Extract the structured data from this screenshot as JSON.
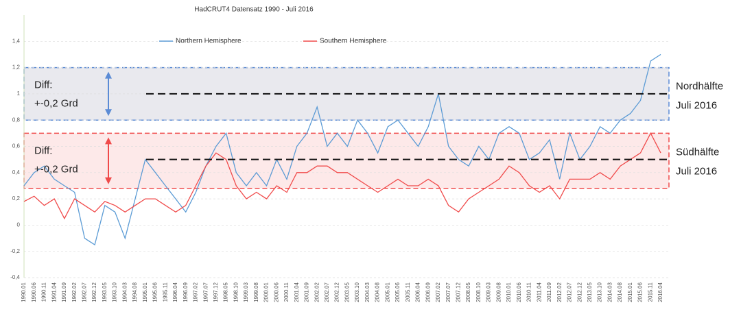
{
  "chart_data": {
    "type": "line",
    "title": "HadCRUT4 Datensatz  1990 - Juli 2016",
    "categories": [
      "1990.01",
      "1990.06",
      "1990.11",
      "1991.04",
      "1991.09",
      "1992.02",
      "1992.07",
      "1992.12",
      "1993.05",
      "1993.10",
      "1994.03",
      "1994.08",
      "1995.01",
      "1995.06",
      "1995.11",
      "1996.04",
      "1996.09",
      "1997.02",
      "1997.07",
      "1997.12",
      "1998.05",
      "1998.10",
      "1999.03",
      "1999.08",
      "2000.01",
      "2000.06",
      "2000.11",
      "2001.04",
      "2001.09",
      "2002.02",
      "2002.07",
      "2002.12",
      "2003.05",
      "2003.10",
      "2004.03",
      "2004.08",
      "2005.01",
      "2005.06",
      "2005.11",
      "2006.04",
      "2006.09",
      "2007.02",
      "2007.07",
      "2007.12",
      "2008.05",
      "2008.10",
      "2009.03",
      "2009.08",
      "2010.01",
      "2010.06",
      "2010.11",
      "2011.04",
      "2011.09",
      "2012.02",
      "2012.07",
      "2012.12",
      "2013.05",
      "2013.10",
      "2014.03",
      "2014.08",
      "2015.01",
      "2015.06",
      "2015.11",
      "2016.04"
    ],
    "series": [
      {
        "name": "Northern Hemisphere",
        "color": "#5b9bd5",
        "values": [
          0.3,
          0.4,
          0.45,
          0.35,
          0.3,
          0.25,
          -0.1,
          -0.15,
          0.15,
          0.1,
          -0.1,
          0.2,
          0.5,
          0.4,
          0.3,
          0.2,
          0.1,
          0.25,
          0.45,
          0.6,
          0.7,
          0.4,
          0.3,
          0.4,
          0.3,
          0.5,
          0.35,
          0.6,
          0.7,
          0.9,
          0.6,
          0.7,
          0.6,
          0.8,
          0.7,
          0.55,
          0.75,
          0.8,
          0.7,
          0.6,
          0.75,
          1.0,
          0.6,
          0.5,
          0.45,
          0.6,
          0.5,
          0.7,
          0.75,
          0.7,
          0.5,
          0.55,
          0.65,
          0.35,
          0.7,
          0.5,
          0.6,
          0.75,
          0.7,
          0.8,
          0.85,
          0.95,
          1.25,
          1.3
        ]
      },
      {
        "name": "Southern Hemisphere",
        "color": "#f04a4a",
        "values": [
          0.18,
          0.22,
          0.15,
          0.2,
          0.05,
          0.2,
          0.15,
          0.1,
          0.18,
          0.15,
          0.1,
          0.15,
          0.2,
          0.2,
          0.15,
          0.1,
          0.15,
          0.3,
          0.45,
          0.55,
          0.5,
          0.3,
          0.2,
          0.25,
          0.2,
          0.3,
          0.25,
          0.4,
          0.4,
          0.45,
          0.45,
          0.4,
          0.4,
          0.35,
          0.3,
          0.25,
          0.3,
          0.35,
          0.3,
          0.3,
          0.35,
          0.3,
          0.15,
          0.1,
          0.2,
          0.25,
          0.3,
          0.35,
          0.45,
          0.4,
          0.3,
          0.25,
          0.3,
          0.2,
          0.35,
          0.35,
          0.35,
          0.4,
          0.35,
          0.45,
          0.5,
          0.55,
          0.7,
          0.55
        ]
      }
    ],
    "ylim": [
      -0.4,
      1.6
    ],
    "yticks": [
      {
        "value": -0.4,
        "label": "-0,4"
      },
      {
        "value": -0.2,
        "label": "-0,2"
      },
      0,
      {
        "value": 0.2,
        "label": "0,2"
      },
      {
        "value": 0.4,
        "label": "0,4"
      },
      {
        "value": 0.6,
        "label": "0,6"
      },
      {
        "value": 0.8,
        "label": "0,8"
      },
      1,
      {
        "value": 1.2,
        "label": "1,2"
      },
      {
        "value": 1.4,
        "label": "1,4"
      }
    ],
    "grid": true,
    "bands": [
      {
        "ylim": [
          0.8,
          1.2
        ],
        "color": "#5b8bd5",
        "fill": "#e9e9ee",
        "reference": 1.0,
        "text": [
          "Diff:",
          "+-0,2 Grd"
        ],
        "label": [
          "Nordhälfte",
          "Juli 2016"
        ]
      },
      {
        "ylim": [
          0.28,
          0.7
        ],
        "color": "#f04a4a",
        "fill": "#fde9e9",
        "reference": 0.5,
        "text": [
          "Diff:",
          "+-0,2 Grd"
        ],
        "label": [
          "Südhälfte",
          "Juli 2016"
        ]
      }
    ]
  }
}
